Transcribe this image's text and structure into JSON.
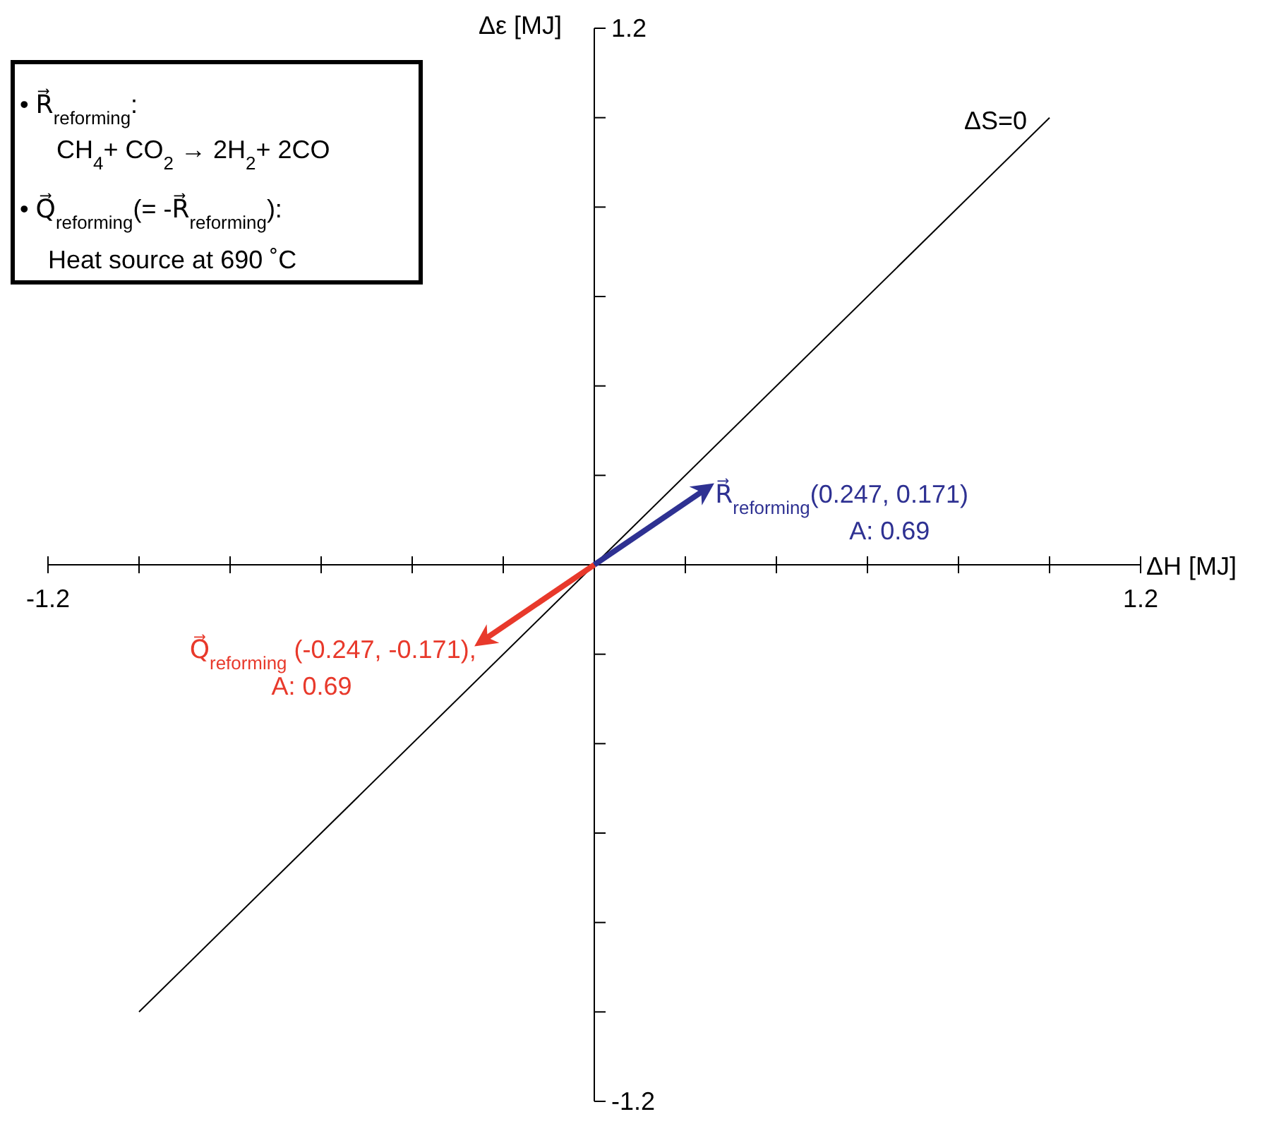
{
  "chart_data": {
    "type": "line",
    "xlabel": "ΔH [MJ]",
    "ylabel": "Δε [MJ]",
    "xlim": [
      -1.2,
      1.2
    ],
    "ylim": [
      -1.2,
      1.2
    ],
    "xticks": [
      -1.2,
      {
        "value": -1,
        "label": null
      },
      {
        "value": -0.8,
        "label": null
      },
      {
        "value": -0.6,
        "label": null
      },
      {
        "value": -0.4,
        "label": null
      },
      {
        "value": -0.2,
        "label": null
      },
      {
        "value": 0,
        "label": null
      },
      {
        "value": 0.2,
        "label": null
      },
      {
        "value": 0.4,
        "label": null
      },
      {
        "value": 0.6,
        "label": null
      },
      {
        "value": 0.8,
        "label": null
      },
      {
        "value": 1,
        "label": null
      },
      1.2
    ],
    "yticks": [
      -1.2,
      {
        "value": -1,
        "label": null
      },
      {
        "value": -0.8,
        "label": null
      },
      {
        "value": -0.6,
        "label": null
      },
      {
        "value": -0.4,
        "label": null
      },
      {
        "value": -0.2,
        "label": null
      },
      {
        "value": 0,
        "label": null
      },
      {
        "value": 0.2,
        "label": null
      },
      {
        "value": 0.4,
        "label": null
      },
      {
        "value": 0.6,
        "label": null
      },
      {
        "value": 0.8,
        "label": null
      },
      {
        "value": 1,
        "label": null
      },
      1.2
    ],
    "series": [
      {
        "color": "#000000",
        "x": [
          -1,
          1
        ],
        "values": [
          -1,
          1
        ]
      },
      {
        "color": "#2e3192",
        "x": [
          0,
          0.247
        ],
        "values": [
          0,
          0.171
        ]
      },
      {
        "color": "#e8392b",
        "x": [
          0,
          -0.247
        ],
        "values": [
          0,
          -0.171
        ]
      }
    ],
    "annotations": [
      "• R⃗$_{reforming}$:",
      "CH$_{4}$+ CO$_{2}$ → 2H$_{2}$+ 2CO",
      "• Q⃗$_{reforming}$(= -R⃗$_{reforming}$):",
      "Heat source at 690 ˚C",
      {
        "text": "ΔS=0",
        "x": 1,
        "y": 1
      },
      {
        "text": "R⃗$_{reforming}$(0.247, 0.171)\nA: 0.69",
        "x": 0.247,
        "y": 0.171
      },
      {
        "text": "Q⃗$_{reforming}$ (-0.247, -0.171),\nA: 0.69",
        "x": -0.247,
        "y": -0.171
      }
    ],
    "grid": false,
    "marker": "none",
    "line_style": "solid"
  }
}
